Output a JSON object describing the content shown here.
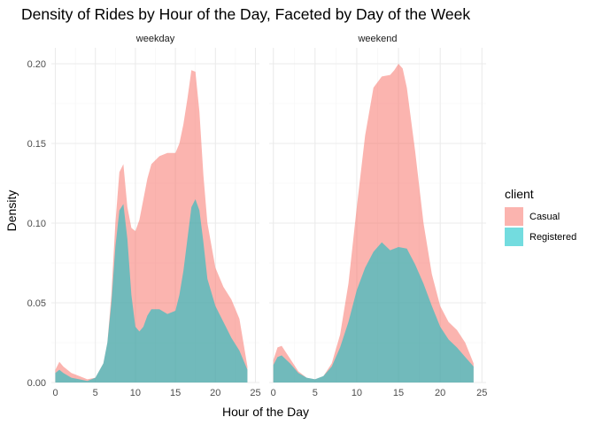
{
  "chart_data": {
    "type": "area",
    "title": "Density of Rides by Hour of the Day, Faceted by Day of the Week",
    "xlabel": "Hour of the Day",
    "ylabel": "Density",
    "xlim": [
      -0.5,
      25.5
    ],
    "ylim": [
      0,
      0.21
    ],
    "x_ticks": [
      0,
      5,
      10,
      15,
      20,
      25
    ],
    "x_tick_labels": [
      "0",
      "5",
      "10",
      "15",
      "20",
      "25"
    ],
    "y_ticks": [
      0,
      0.05,
      0.1,
      0.15,
      0.2
    ],
    "y_tick_labels": [
      "0.00",
      "0.05",
      "0.10",
      "0.15",
      "0.20"
    ],
    "grid": true,
    "legend": {
      "title": "client",
      "placement": "right",
      "entries": [
        {
          "label": "Casual",
          "color": "#F8766D"
        },
        {
          "label": "Registered",
          "color": "#00BFC4"
        }
      ]
    },
    "fill_opacity": 0.55,
    "facets": [
      {
        "label": "weekday",
        "series": [
          {
            "name": "Casual",
            "color": "#F8766D",
            "x": [
              0,
              0.5,
              1,
              2,
              3,
              4,
              5,
              6,
              6.5,
              7,
              7.5,
              8,
              8.5,
              9,
              9.5,
              10,
              10.5,
              11,
              11.5,
              12,
              13,
              14,
              15,
              15.5,
              16,
              16.5,
              17,
              17.5,
              18,
              18.5,
              19,
              20,
              21,
              22,
              23,
              24
            ],
            "y": [
              0.008,
              0.013,
              0.01,
              0.006,
              0.004,
              0.002,
              0.003,
              0.012,
              0.025,
              0.055,
              0.1,
              0.132,
              0.137,
              0.11,
              0.097,
              0.095,
              0.102,
              0.115,
              0.128,
              0.137,
              0.142,
              0.144,
              0.144,
              0.15,
              0.162,
              0.178,
              0.196,
              0.195,
              0.17,
              0.13,
              0.1,
              0.072,
              0.06,
              0.052,
              0.04,
              0.01
            ]
          },
          {
            "name": "Registered",
            "color": "#00BFC4",
            "x": [
              0,
              0.5,
              1,
              2,
              3,
              4,
              5,
              6,
              6.5,
              7,
              7.5,
              8,
              8.5,
              9,
              9.5,
              10,
              10.5,
              11,
              11.5,
              12,
              13,
              14,
              15,
              15.5,
              16,
              16.5,
              17,
              17.5,
              18,
              18.5,
              19,
              20,
              21,
              22,
              23,
              24
            ],
            "y": [
              0.006,
              0.008,
              0.006,
              0.003,
              0.002,
              0.001,
              0.003,
              0.012,
              0.025,
              0.05,
              0.085,
              0.108,
              0.112,
              0.09,
              0.055,
              0.035,
              0.032,
              0.035,
              0.042,
              0.046,
              0.046,
              0.043,
              0.045,
              0.055,
              0.07,
              0.09,
              0.11,
              0.115,
              0.108,
              0.088,
              0.065,
              0.048,
              0.038,
              0.028,
              0.02,
              0.008
            ]
          }
        ]
      },
      {
        "label": "weekend",
        "series": [
          {
            "name": "Casual",
            "color": "#F8766D",
            "x": [
              0,
              0.5,
              1,
              2,
              3,
              4,
              5,
              6,
              7,
              8,
              9,
              10,
              11,
              12,
              13,
              14,
              14.5,
              15,
              15.5,
              16,
              17,
              18,
              19,
              20,
              21,
              22,
              23,
              24
            ],
            "y": [
              0.014,
              0.022,
              0.023,
              0.015,
              0.007,
              0.003,
              0.002,
              0.004,
              0.012,
              0.03,
              0.062,
              0.11,
              0.155,
              0.185,
              0.192,
              0.193,
              0.196,
              0.2,
              0.197,
              0.185,
              0.145,
              0.1,
              0.068,
              0.048,
              0.038,
              0.033,
              0.025,
              0.012
            ]
          },
          {
            "name": "Registered",
            "color": "#00BFC4",
            "x": [
              0,
              0.5,
              1,
              2,
              3,
              4,
              5,
              6,
              7,
              8,
              9,
              10,
              11,
              12,
              13,
              14,
              15,
              16,
              17,
              18,
              19,
              20,
              21,
              22,
              23,
              24
            ],
            "y": [
              0.011,
              0.016,
              0.017,
              0.012,
              0.006,
              0.003,
              0.002,
              0.004,
              0.01,
              0.022,
              0.038,
              0.058,
              0.072,
              0.082,
              0.088,
              0.083,
              0.085,
              0.084,
              0.074,
              0.062,
              0.048,
              0.035,
              0.027,
              0.022,
              0.016,
              0.01
            ]
          }
        ]
      }
    ]
  }
}
